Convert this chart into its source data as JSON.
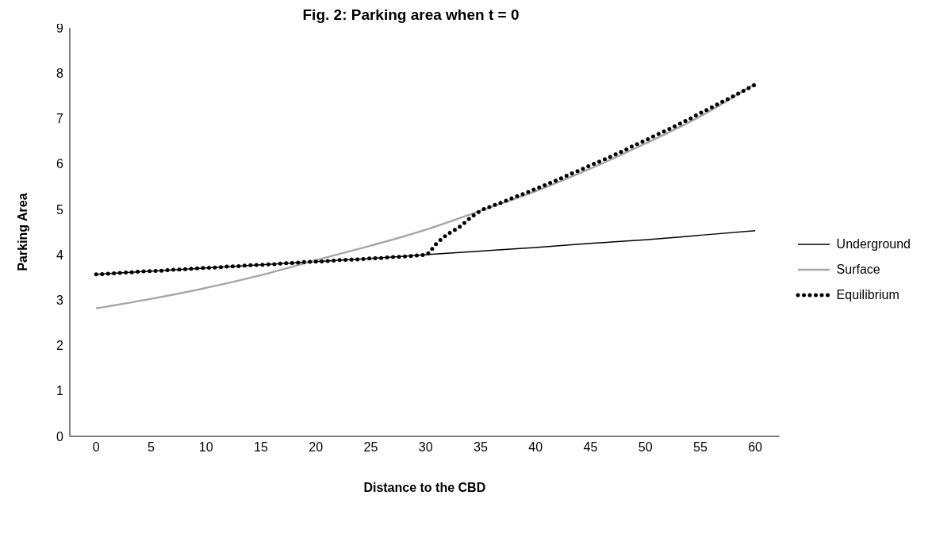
{
  "chart_data": {
    "type": "line",
    "title": "Fig. 2: Parking area when t = 0",
    "xlabel": "Distance to the CBD",
    "ylabel": "Parking Area",
    "x": [
      0,
      5,
      10,
      15,
      20,
      25,
      30,
      35,
      40,
      45,
      50,
      55,
      60
    ],
    "xlim": [
      -2.4,
      62.2
    ],
    "xticks": [
      0,
      5,
      10,
      15,
      20,
      25,
      30,
      35,
      40,
      45,
      50,
      55,
      60
    ],
    "ylim": [
      0,
      9
    ],
    "yticks": [
      0,
      1,
      2,
      3,
      4,
      5,
      6,
      7,
      8,
      9
    ],
    "grid": false,
    "legend": "right",
    "marker": "none",
    "series": [
      {
        "name": "Underground",
        "color": "#000000",
        "line_style": "solid",
        "values": [
          3.57,
          3.64,
          3.71,
          3.78,
          3.85,
          3.92,
          4.0,
          4.08,
          4.16,
          4.25,
          4.33,
          4.43,
          4.53
        ]
      },
      {
        "name": "Surface",
        "color": "#a6a6a6",
        "line_style": "solid",
        "values": [
          2.82,
          3.03,
          3.27,
          3.55,
          3.88,
          4.2,
          4.55,
          4.97,
          5.4,
          5.9,
          6.45,
          7.05,
          7.77
        ]
      },
      {
        "name": "Equilibrium",
        "color": "#000000",
        "line_style": "dotted",
        "x": [
          0,
          1,
          2,
          3,
          4,
          5,
          6,
          7,
          8,
          9,
          10,
          11,
          12,
          13,
          14,
          15,
          16,
          17,
          18,
          19,
          20,
          21,
          22,
          23,
          24,
          25,
          26,
          27,
          28,
          29,
          30,
          31,
          32,
          33,
          34,
          35,
          36,
          37,
          38,
          39,
          40,
          41,
          42,
          43,
          44,
          45,
          46,
          47,
          48,
          49,
          50,
          51,
          52,
          53,
          54,
          55,
          56,
          57,
          58,
          59,
          60
        ],
        "values": [
          3.57,
          3.58,
          3.6,
          3.61,
          3.63,
          3.64,
          3.65,
          3.67,
          3.68,
          3.7,
          3.71,
          3.72,
          3.74,
          3.75,
          3.77,
          3.78,
          3.79,
          3.81,
          3.82,
          3.84,
          3.85,
          3.86,
          3.88,
          3.89,
          3.9,
          3.92,
          3.93,
          3.95,
          3.96,
          3.98,
          4.0,
          4.25,
          4.45,
          4.6,
          4.8,
          4.97,
          5.07,
          5.16,
          5.26,
          5.35,
          5.45,
          5.55,
          5.65,
          5.76,
          5.86,
          5.97,
          6.07,
          6.18,
          6.29,
          6.41,
          6.52,
          6.64,
          6.75,
          6.87,
          6.99,
          7.12,
          7.24,
          7.37,
          7.49,
          7.62,
          7.75
        ]
      }
    ]
  }
}
